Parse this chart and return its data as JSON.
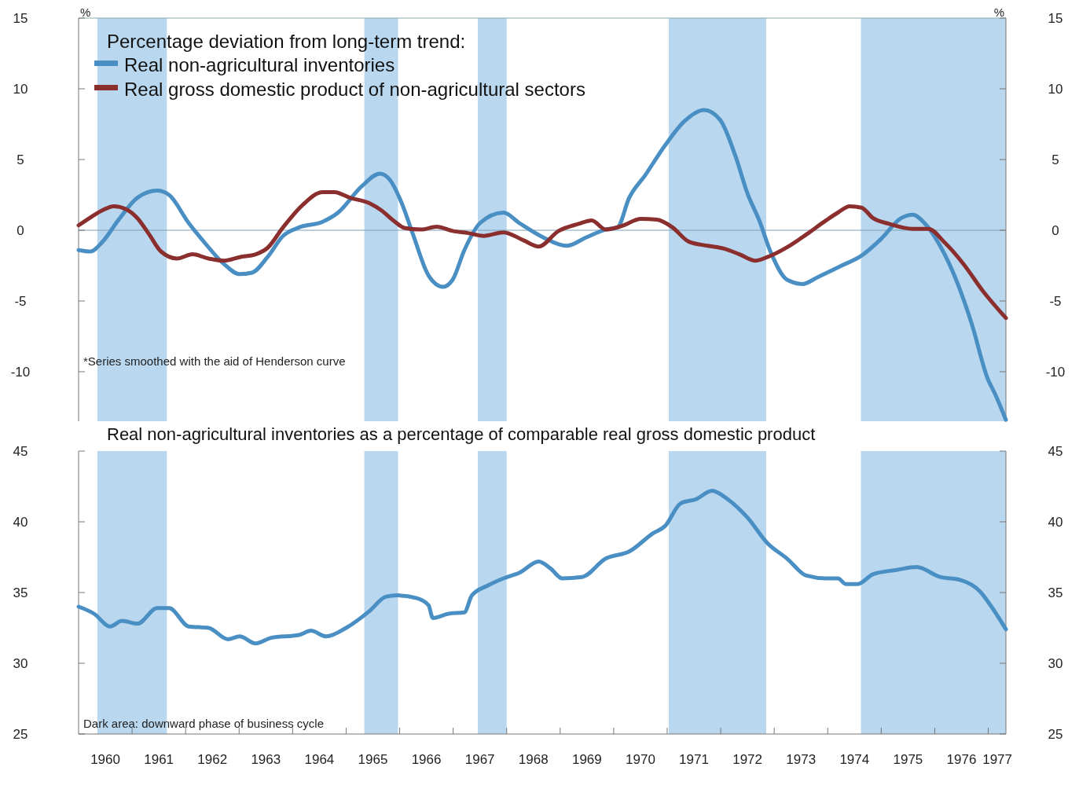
{
  "chart_data": [
    {
      "type": "line",
      "legend_title": "Percentage deviation from long-term trend:",
      "ylabel": "%",
      "y2label": "%",
      "legend": "top left",
      "tick_labels": "y",
      "xlim": [
        1960,
        1977.33
      ],
      "ylim": [
        -13.5,
        15
      ],
      "yticks": [
        -10,
        -5,
        0,
        5,
        10,
        15
      ],
      "y2lim": [
        -13.5,
        15
      ],
      "y2ticks": [
        -10,
        -5,
        0,
        5,
        10,
        15
      ],
      "ref_lines": [
        {
          "axis": "y",
          "value": 0,
          "color": "#7f9fb5"
        }
      ],
      "bands": [
        {
          "axis": "x",
          "from": 1960.35,
          "to": 1961.65,
          "color": "#b9d7ee"
        },
        {
          "axis": "x",
          "from": 1965.34,
          "to": 1965.97,
          "color": "#b9d7ee"
        },
        {
          "axis": "x",
          "from": 1967.46,
          "to": 1968.0,
          "color": "#b9d7ee"
        },
        {
          "axis": "x",
          "from": 1971.03,
          "to": 1972.85,
          "color": "#b9d7ee"
        },
        {
          "axis": "x",
          "from": 1974.62,
          "to": 1977.33,
          "color": "#b9d7ee"
        }
      ],
      "annotations": [
        "*Series smoothed with the aid of Henderson curve"
      ],
      "series": [
        {
          "name": "Real non-agricultural inventories",
          "color": "#4a8fc4",
          "x": [
            1960,
            1960.22,
            1960.44,
            1960.74,
            1961.1,
            1961.47,
            1961.69,
            1962.06,
            1962.35,
            1962.72,
            1963.01,
            1963.24,
            1963.53,
            1963.82,
            1964.12,
            1964.56,
            1964.85,
            1965.29,
            1965.63,
            1965.81,
            1966.03,
            1966.25,
            1966.54,
            1966.81,
            1966.99,
            1967.21,
            1967.5,
            1967.94,
            1968.24,
            1968.68,
            1969.12,
            1969.49,
            1969.85,
            1970.07,
            1970.29,
            1970.59,
            1970.96,
            1971.32,
            1971.69,
            1971.99,
            1972.28,
            1972.5,
            1972.72,
            1972.94,
            1973.24,
            1973.53,
            1973.82,
            1974.26,
            1974.63,
            1975.0,
            1975.37,
            1975.59,
            1975.81,
            1976.1,
            1976.4,
            1976.69,
            1976.99,
            1977.13,
            1977.33
          ],
          "values": [
            -1.4,
            -1.5,
            -0.85,
            0.7,
            2.3,
            2.8,
            2.5,
            0.5,
            -0.85,
            -2.4,
            -3.1,
            -3.0,
            -1.9,
            -0.4,
            0.2,
            0.6,
            1.25,
            3.1,
            4.0,
            3.6,
            2.0,
            -0.3,
            -3.2,
            -4.0,
            -3.5,
            -1.4,
            0.5,
            1.25,
            0.5,
            -0.5,
            -1.1,
            -0.5,
            0.05,
            0.2,
            2.3,
            3.9,
            6.0,
            7.7,
            8.5,
            7.8,
            5.2,
            2.6,
            0.7,
            -1.6,
            -3.5,
            -3.8,
            -3.3,
            -2.5,
            -1.8,
            -0.6,
            0.85,
            1.1,
            0.5,
            -1.1,
            -3.5,
            -6.6,
            -10.5,
            -11.6,
            -13.4
          ]
        },
        {
          "name": "Real gross domestic product of non-agricultural sectors",
          "color": "#8b2e2e",
          "x": [
            1960,
            1960.22,
            1960.44,
            1960.66,
            1960.88,
            1961.1,
            1961.32,
            1961.54,
            1961.84,
            1962.13,
            1962.43,
            1962.72,
            1963.01,
            1963.31,
            1963.53,
            1963.82,
            1964.19,
            1964.56,
            1964.78,
            1965.07,
            1965.44,
            1965.66,
            1965.88,
            1966.1,
            1966.4,
            1966.69,
            1966.99,
            1967.28,
            1967.57,
            1967.94,
            1968.31,
            1968.6,
            1968.97,
            1969.34,
            1969.59,
            1969.85,
            1970.15,
            1970.51,
            1970.81,
            1971.1,
            1971.4,
            1971.76,
            1972.06,
            1972.35,
            1972.65,
            1972.87,
            1973.24,
            1973.6,
            1973.97,
            1974.19,
            1974.41,
            1974.63,
            1974.85,
            1975.15,
            1975.59,
            1975.88,
            1976.18,
            1976.54,
            1976.91,
            1977.33
          ],
          "values": [
            0.35,
            0.9,
            1.4,
            1.7,
            1.5,
            0.85,
            -0.3,
            -1.5,
            -2.0,
            -1.7,
            -2.0,
            -2.15,
            -1.9,
            -1.7,
            -1.25,
            0.2,
            1.8,
            2.7,
            2.7,
            2.3,
            1.9,
            1.4,
            0.7,
            0.15,
            0.05,
            0.25,
            -0.05,
            -0.2,
            -0.4,
            -0.15,
            -0.7,
            -1.15,
            -0.05,
            0.45,
            0.7,
            0.05,
            0.3,
            0.8,
            0.75,
            0.2,
            -0.8,
            -1.1,
            -1.3,
            -1.7,
            -2.15,
            -1.9,
            -1.2,
            -0.3,
            0.7,
            1.25,
            1.7,
            1.6,
            0.85,
            0.45,
            0.1,
            0.1,
            -0.85,
            -2.4,
            -4.35,
            -6.2
          ]
        }
      ]
    },
    {
      "type": "line",
      "title": "Real non-agricultural inventories as a percentage of comparable real gross domestic product",
      "xlim": [
        1960,
        1977.33
      ],
      "xticks": [
        {
          "value": 1960.5,
          "label": "1960"
        },
        {
          "value": 1961,
          "label": null
        },
        {
          "value": 1961.5,
          "label": "1961"
        },
        {
          "value": 1962,
          "label": null
        },
        {
          "value": 1962.5,
          "label": "1962"
        },
        {
          "value": 1963,
          "label": null
        },
        {
          "value": 1963.5,
          "label": "1963"
        },
        {
          "value": 1964,
          "label": null
        },
        {
          "value": 1964.5,
          "label": "1964"
        },
        {
          "value": 1965,
          "label": null
        },
        {
          "value": 1965.5,
          "label": "1965"
        },
        {
          "value": 1966,
          "label": null
        },
        {
          "value": 1966.5,
          "label": "1966"
        },
        {
          "value": 1967,
          "label": null
        },
        {
          "value": 1967.5,
          "label": "1967"
        },
        {
          "value": 1968,
          "label": null
        },
        {
          "value": 1968.5,
          "label": "1968"
        },
        {
          "value": 1969,
          "label": null
        },
        {
          "value": 1969.5,
          "label": "1969"
        },
        {
          "value": 1970,
          "label": null
        },
        {
          "value": 1970.5,
          "label": "1970"
        },
        {
          "value": 1971,
          "label": null
        },
        {
          "value": 1971.5,
          "label": "1971"
        },
        {
          "value": 1972,
          "label": null
        },
        {
          "value": 1972.5,
          "label": "1972"
        },
        {
          "value": 1973,
          "label": null
        },
        {
          "value": 1973.5,
          "label": "1973"
        },
        {
          "value": 1974,
          "label": null
        },
        {
          "value": 1974.5,
          "label": "1974"
        },
        {
          "value": 1975,
          "label": null
        },
        {
          "value": 1975.5,
          "label": "1975"
        },
        {
          "value": 1976,
          "label": null
        },
        {
          "value": 1976.5,
          "label": "1976"
        },
        {
          "value": 1977,
          "label": null
        },
        {
          "value": 1977.17,
          "label": "1977"
        }
      ],
      "ylim": [
        25,
        45
      ],
      "yticks": [
        25,
        30,
        35,
        40,
        45
      ],
      "y2lim": [
        25,
        45
      ],
      "y2ticks": [
        25,
        30,
        35,
        40,
        45
      ],
      "bands": [
        {
          "axis": "x",
          "from": 1960.35,
          "to": 1961.65,
          "color": "#b9d7ee"
        },
        {
          "axis": "x",
          "from": 1965.34,
          "to": 1965.97,
          "color": "#b9d7ee"
        },
        {
          "axis": "x",
          "from": 1967.46,
          "to": 1968.0,
          "color": "#b9d7ee"
        },
        {
          "axis": "x",
          "from": 1971.03,
          "to": 1972.85,
          "color": "#b9d7ee"
        },
        {
          "axis": "x",
          "from": 1974.62,
          "to": 1977.33,
          "color": "#b9d7ee"
        }
      ],
      "annotations": [
        "Dark area: downward phase of business cycle"
      ],
      "series": [
        {
          "color": "#4a8fc4",
          "x": [
            1960.0,
            1960.29,
            1960.59,
            1960.81,
            1961.1,
            1961.47,
            1961.69,
            1962.06,
            1962.43,
            1962.79,
            1963.01,
            1963.31,
            1963.6,
            1964.12,
            1964.34,
            1964.63,
            1965.0,
            1965.44,
            1965.74,
            1965.96,
            1966.32,
            1966.54,
            1966.62,
            1966.91,
            1967.21,
            1967.35,
            1967.65,
            1967.94,
            1968.24,
            1968.6,
            1968.82,
            1969.04,
            1969.41,
            1969.85,
            1970.29,
            1970.74,
            1970.96,
            1971.25,
            1971.54,
            1971.84,
            1972.13,
            1972.5,
            1972.87,
            1973.24,
            1973.6,
            1973.97,
            1974.19,
            1974.34,
            1974.56,
            1974.85,
            1975.29,
            1975.66,
            1976.1,
            1976.47,
            1976.84,
            1977.06,
            1977.33
          ],
          "values": [
            34.0,
            33.5,
            32.6,
            33.0,
            32.8,
            33.9,
            33.9,
            32.6,
            32.5,
            31.7,
            31.9,
            31.4,
            31.8,
            32.0,
            32.3,
            31.9,
            32.5,
            33.7,
            34.7,
            34.8,
            34.6,
            34.1,
            33.2,
            33.5,
            33.6,
            34.8,
            35.5,
            36.0,
            36.4,
            37.2,
            36.7,
            36.0,
            36.1,
            37.4,
            37.9,
            39.2,
            39.7,
            41.3,
            41.6,
            42.2,
            41.6,
            40.3,
            38.5,
            37.4,
            36.2,
            36.0,
            36.0,
            35.6,
            35.6,
            36.3,
            36.6,
            36.8,
            36.1,
            35.9,
            35.1,
            34.0,
            32.4
          ]
        }
      ]
    }
  ]
}
